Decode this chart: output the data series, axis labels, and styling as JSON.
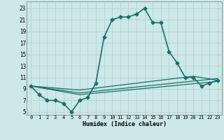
{
  "xlabel": "Humidex (Indice chaleur)",
  "bg_color": "#cce8e8",
  "grid_color": "#b0cccc",
  "line_color": "#1a6e6e",
  "xlim": [
    -0.5,
    23.5
  ],
  "ylim": [
    4.5,
    24.2
  ],
  "xticks": [
    0,
    1,
    2,
    3,
    4,
    5,
    6,
    7,
    8,
    9,
    10,
    11,
    12,
    13,
    14,
    15,
    16,
    17,
    18,
    19,
    20,
    21,
    22,
    23
  ],
  "yticks": [
    5,
    7,
    9,
    11,
    13,
    15,
    17,
    19,
    21,
    23
  ],
  "lines": [
    {
      "x": [
        0,
        1,
        2,
        3,
        4,
        5,
        6,
        7,
        8,
        9,
        10,
        11,
        12,
        13,
        14,
        15,
        16,
        17,
        18,
        19,
        20,
        21,
        22,
        23
      ],
      "y": [
        9.5,
        8,
        7,
        7,
        6.5,
        5,
        7,
        7.5,
        10,
        18,
        21,
        21.5,
        21.5,
        22,
        23,
        20.5,
        20.5,
        15.5,
        13.5,
        11,
        11,
        9.5,
        10,
        10.5
      ],
      "marker": "D",
      "markersize": 2.5,
      "linewidth": 1.2,
      "has_marker": true
    },
    {
      "x": [
        0,
        6,
        23
      ],
      "y": [
        9.5,
        8.0,
        10.3
      ],
      "marker": null,
      "markersize": 0,
      "linewidth": 0.9,
      "has_marker": false
    },
    {
      "x": [
        0,
        6,
        23
      ],
      "y": [
        9.5,
        8.3,
        10.8
      ],
      "marker": null,
      "markersize": 0,
      "linewidth": 0.9,
      "has_marker": false
    },
    {
      "x": [
        0,
        6,
        20,
        23
      ],
      "y": [
        9.5,
        8.8,
        11.2,
        10.5
      ],
      "marker": null,
      "markersize": 0,
      "linewidth": 0.9,
      "has_marker": false
    }
  ]
}
